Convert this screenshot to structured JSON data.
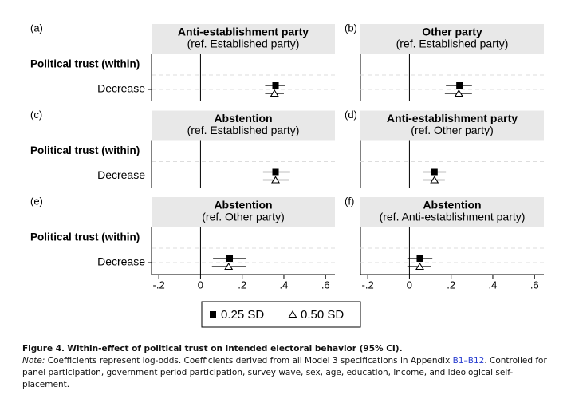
{
  "legend": [
    {
      "name": "0.25 SD",
      "marker": "square"
    },
    {
      "name": "0.50 SD",
      "marker": "triangle"
    }
  ],
  "chart_data": [
    {
      "type": "dot",
      "label": "(a)",
      "title": "Anti-establishment party",
      "subtitle": "(ref. Established party)",
      "y_label": "Political trust (within)",
      "categories": [
        "Decrease"
      ],
      "series": [
        {
          "marker": "square",
          "values": [
            0.36
          ],
          "ci_low": [
            0.31
          ],
          "ci_high": [
            0.405
          ]
        },
        {
          "marker": "triangle",
          "values": [
            0.355
          ],
          "ci_low": [
            0.31
          ],
          "ci_high": [
            0.4
          ]
        }
      ],
      "xlim": [
        -0.235,
        0.645
      ]
    },
    {
      "type": "dot",
      "label": "(b)",
      "title": "Other party",
      "subtitle": "(ref. Established party)",
      "categories": [
        null
      ],
      "series": [
        {
          "marker": "square",
          "values": [
            0.24
          ],
          "ci_low": [
            0.175
          ],
          "ci_high": [
            0.3
          ]
        },
        {
          "marker": "triangle",
          "values": [
            0.237
          ],
          "ci_low": [
            0.17
          ],
          "ci_high": [
            0.3
          ]
        }
      ],
      "xlim": [
        -0.235,
        0.645
      ]
    },
    {
      "type": "dot",
      "label": "(c)",
      "title": "Abstention",
      "subtitle": "(ref. Established party)",
      "y_label": "Political trust (within)",
      "categories": [
        "Decrease"
      ],
      "series": [
        {
          "marker": "square",
          "values": [
            0.36
          ],
          "ci_low": [
            0.3
          ],
          "ci_high": [
            0.43
          ]
        },
        {
          "marker": "triangle",
          "values": [
            0.36
          ],
          "ci_low": [
            0.3
          ],
          "ci_high": [
            0.425
          ]
        }
      ],
      "xlim": [
        -0.235,
        0.645
      ]
    },
    {
      "type": "dot",
      "label": "(d)",
      "title": "Anti-establishment party",
      "subtitle": "(ref. Other party)",
      "categories": [
        null
      ],
      "series": [
        {
          "marker": "square",
          "values": [
            0.12
          ],
          "ci_low": [
            0.065
          ],
          "ci_high": [
            0.175
          ]
        },
        {
          "marker": "triangle",
          "values": [
            0.12
          ],
          "ci_low": [
            0.065
          ],
          "ci_high": [
            0.17
          ]
        }
      ],
      "xlim": [
        -0.235,
        0.645
      ]
    },
    {
      "type": "dot",
      "label": "(e)",
      "title": "Abstention",
      "subtitle": "(ref. Other party)",
      "y_label": "Political trust (within)",
      "categories": [
        "Decrease"
      ],
      "series": [
        {
          "marker": "square",
          "values": [
            0.14
          ],
          "ci_low": [
            0.06
          ],
          "ci_high": [
            0.22
          ]
        },
        {
          "marker": "triangle",
          "values": [
            0.135
          ],
          "ci_low": [
            0.055
          ],
          "ci_high": [
            0.22
          ]
        }
      ],
      "xlim": [
        -0.235,
        0.645
      ],
      "xticks": [
        {
          "value": -0.2,
          "label": "-.2"
        },
        0,
        {
          "value": 0.2,
          "label": ".2"
        },
        {
          "value": 0.4,
          "label": ".4"
        },
        {
          "value": 0.6,
          "label": ".6"
        }
      ]
    },
    {
      "type": "dot",
      "label": "(f)",
      "title": "Abstention",
      "subtitle": "(ref. Anti-establishment party)",
      "categories": [
        null
      ],
      "series": [
        {
          "marker": "square",
          "values": [
            0.05
          ],
          "ci_low": [
            -0.01
          ],
          "ci_high": [
            0.11
          ]
        },
        {
          "marker": "triangle",
          "values": [
            0.05
          ],
          "ci_low": [
            -0.01
          ],
          "ci_high": [
            0.105
          ]
        }
      ],
      "xlim": [
        -0.235,
        0.645
      ],
      "xticks": [
        {
          "value": -0.2,
          "label": "-.2"
        },
        0,
        {
          "value": 0.2,
          "label": ".2"
        },
        {
          "value": 0.4,
          "label": ".4"
        },
        {
          "value": 0.6,
          "label": ".6"
        }
      ]
    }
  ],
  "caption": {
    "label": "Figure 4.",
    "title": "Within-effect of political trust on intended electoral behavior (95% CI).",
    "note_label": "Note:",
    "note": [
      "Coefficients represent log-odds. Coefficients derived from all Model 3 specifications in Appendix ",
      "B1–B12",
      ". Controlled for panel participation, government period participation, survey wave, sex, age, education, income, and ideological self-placement."
    ]
  }
}
